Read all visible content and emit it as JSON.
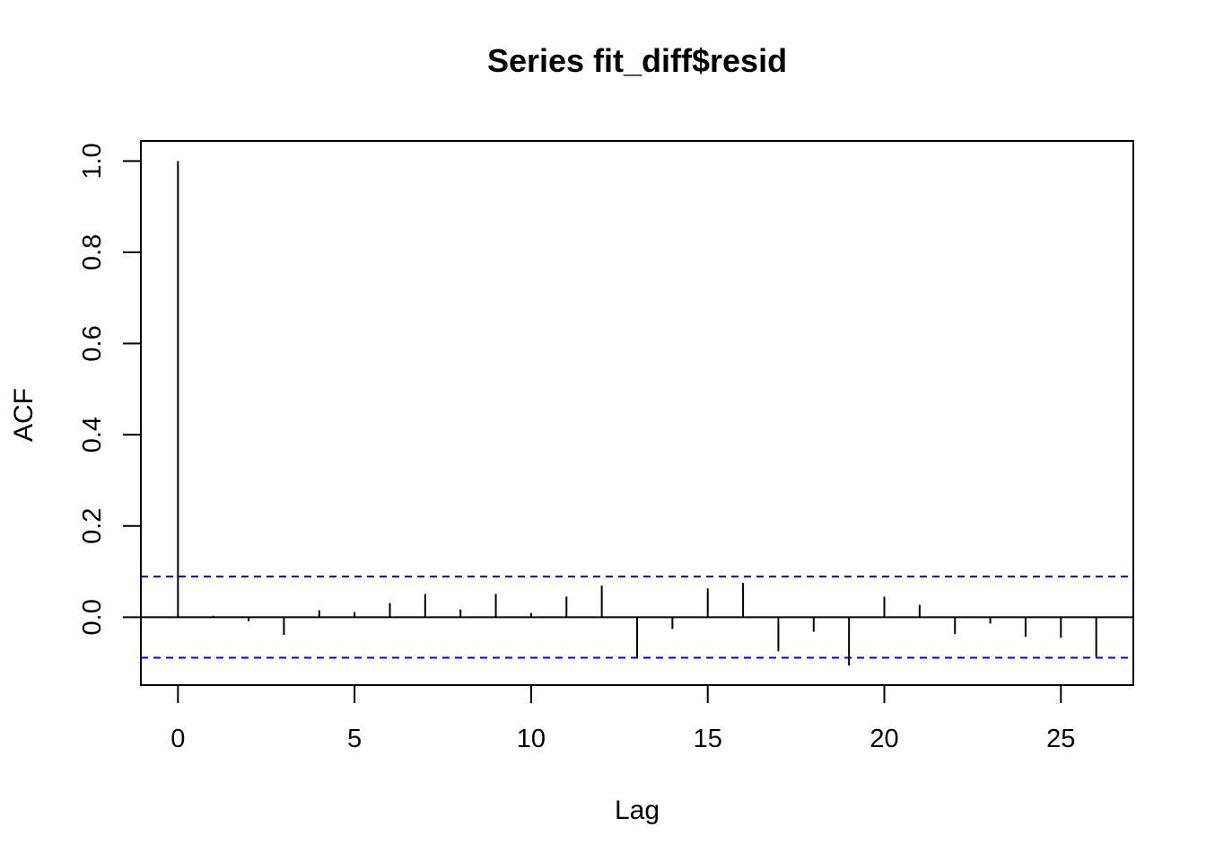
{
  "chart_data": {
    "type": "bar",
    "title": "Series  fit_diff$resid",
    "xlabel": "Lag",
    "ylabel": "ACF",
    "xlim": [
      -1.05,
      27.05
    ],
    "ylim": [
      -0.149,
      1.044
    ],
    "x_ticks": [
      0,
      5,
      10,
      15,
      20,
      25
    ],
    "y_ticks": [
      0.0,
      0.2,
      0.4,
      0.6,
      0.8,
      1.0
    ],
    "x_tick_labels": [
      "0",
      "5",
      "10",
      "15",
      "20",
      "25"
    ],
    "y_tick_labels": [
      "0.0",
      "0.2",
      "0.4",
      "0.6",
      "0.8",
      "1.0"
    ],
    "lags": [
      0,
      1,
      2,
      3,
      4,
      5,
      6,
      7,
      8,
      9,
      10,
      11,
      12,
      13,
      14,
      15,
      16,
      17,
      18,
      19,
      20,
      21,
      22,
      23,
      24,
      25,
      26
    ],
    "values": [
      1.0,
      0.003,
      -0.009,
      -0.039,
      0.015,
      0.011,
      0.031,
      0.051,
      0.017,
      0.051,
      0.009,
      0.045,
      0.069,
      -0.087,
      -0.026,
      0.063,
      0.075,
      -0.075,
      -0.032,
      -0.106,
      0.045,
      0.027,
      -0.037,
      -0.014,
      -0.043,
      -0.045,
      -0.087
    ],
    "confidence_bound": 0.089,
    "line_color": "#000000",
    "bound_color": "#0000ff",
    "grid": false
  }
}
